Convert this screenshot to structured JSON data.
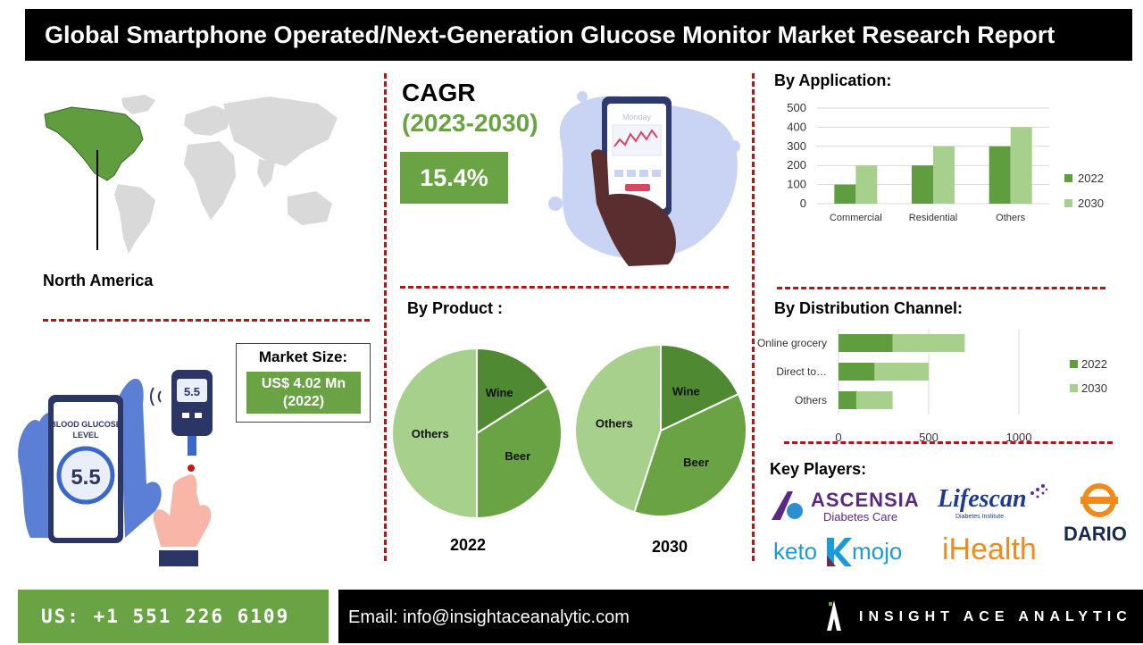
{
  "title": "Global Smartphone Operated/Next-Generation Glucose Monitor Market Research Report",
  "region": {
    "label": "North America"
  },
  "cagr": {
    "title": "CAGR",
    "years": "(2023-2030)",
    "value": "15.4%"
  },
  "phone_illustration": {
    "screen_label": "Monday"
  },
  "market_size": {
    "label": "Market Size:",
    "value_line1": "US$ 4.02 Mn",
    "value_line2": "(2022)"
  },
  "glucose_illustration": {
    "label_line1": "BLOOD GLUCOSE",
    "label_line2": "LEVEL",
    "reading": "5.5",
    "meter_reading": "5.5"
  },
  "sections": {
    "application": "By Application:",
    "product": "By Product :",
    "distribution": "By Distribution Channel:",
    "key_players": "Key Players:"
  },
  "colors": {
    "series_2022": "#5f9d3e",
    "series_2030": "#a8d08d",
    "accent_green": "#6aa343",
    "divider_red": "#b01818"
  },
  "chart_data": [
    {
      "id": "by_application",
      "type": "bar",
      "categories": [
        "Commercial",
        "Residential",
        "Others"
      ],
      "series": [
        {
          "name": "2022",
          "values": [
            100,
            200,
            300
          ]
        },
        {
          "name": "2030",
          "values": [
            200,
            300,
            400
          ]
        }
      ],
      "yticks": [
        "0",
        "100",
        "200",
        "300",
        "400",
        "500"
      ],
      "ylim": [
        0,
        500
      ],
      "grid": true,
      "legend_position": "right"
    },
    {
      "id": "by_product_2022",
      "type": "pie",
      "title": "2022",
      "slices": [
        {
          "label": "Wine",
          "value": 16
        },
        {
          "label": "Beer",
          "value": 34
        },
        {
          "label": "Others",
          "value": 50
        }
      ]
    },
    {
      "id": "by_product_2030",
      "type": "pie",
      "title": "2030",
      "slices": [
        {
          "label": "Wine",
          "value": 18
        },
        {
          "label": "Beer",
          "value": 37
        },
        {
          "label": "Others",
          "value": 45
        }
      ]
    },
    {
      "id": "by_distribution_channel",
      "type": "bar",
      "orientation": "horizontal",
      "stacked": true,
      "categories": [
        "Online grocery",
        "Direct to…",
        "Others"
      ],
      "series": [
        {
          "name": "2022",
          "values": [
            300,
            200,
            100
          ]
        },
        {
          "name": "2030",
          "values": [
            400,
            300,
            200
          ]
        }
      ],
      "xticks": [
        "0",
        "500",
        "1000"
      ],
      "xlim": [
        0,
        1000
      ],
      "grid": true,
      "legend_position": "right"
    }
  ],
  "key_players": [
    {
      "name": "ASCENSIA",
      "sub": "Diabetes Care"
    },
    {
      "name": "Lifescan",
      "sub": "Diabetes Institute"
    },
    {
      "name": "DARIO"
    },
    {
      "name": "keto",
      "name2": "mojo"
    },
    {
      "name": "iHealth"
    }
  ],
  "footer": {
    "phone": "US: +1 551 226 6109",
    "email": "Email: info@insightaceanalytic.com",
    "brand": "INSIGHT ACE ANALYTIC"
  }
}
